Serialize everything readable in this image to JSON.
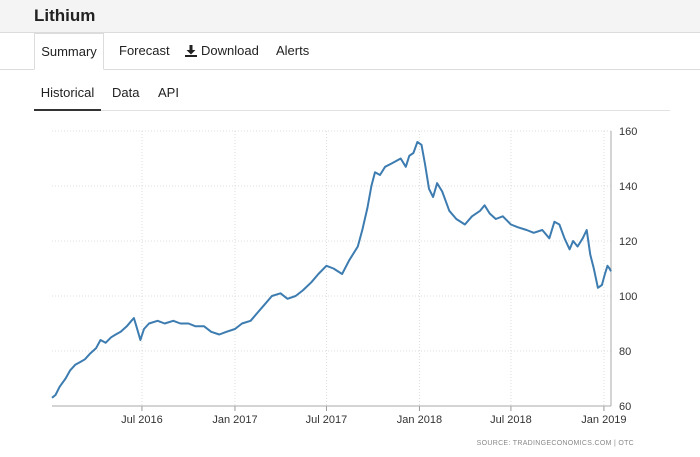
{
  "app": {
    "title": "Lithium"
  },
  "tabs": [
    {
      "label": "Summary",
      "active": true
    },
    {
      "label": "Forecast"
    },
    {
      "label": "Download",
      "icon": "download-icon"
    },
    {
      "label": "Alerts"
    }
  ],
  "subtabs": [
    {
      "label": "Historical",
      "active": true
    },
    {
      "label": "Data"
    },
    {
      "label": "API"
    }
  ],
  "colors": {
    "line": "#3d7cb0",
    "grid": "#dddddd",
    "active_underline": "#333333"
  },
  "chart_data": {
    "type": "line",
    "title": "",
    "xlabel": "",
    "ylabel": "",
    "ylim": [
      60,
      160
    ],
    "yticks": [
      60,
      80,
      100,
      120,
      140,
      160
    ],
    "xticks": [
      "Jul 2016",
      "Jan 2017",
      "Jul 2017",
      "Jan 2018",
      "Jul 2018",
      "Jan 2019"
    ],
    "xlim": [
      "2016-01-05",
      "2019-01-15"
    ],
    "grid": true,
    "y_axis_side": "right",
    "series": [
      {
        "name": "",
        "points": [
          [
            "2016-01-05",
            63
          ],
          [
            "2016-01-12",
            64
          ],
          [
            "2016-01-20",
            67
          ],
          [
            "2016-02-01",
            70
          ],
          [
            "2016-02-10",
            73
          ],
          [
            "2016-02-20",
            75
          ],
          [
            "2016-03-01",
            76
          ],
          [
            "2016-03-10",
            77
          ],
          [
            "2016-03-20",
            79
          ],
          [
            "2016-04-01",
            81
          ],
          [
            "2016-04-10",
            84
          ],
          [
            "2016-04-20",
            83
          ],
          [
            "2016-05-01",
            85
          ],
          [
            "2016-05-10",
            86
          ],
          [
            "2016-05-20",
            87
          ],
          [
            "2016-06-01",
            89
          ],
          [
            "2016-06-10",
            91
          ],
          [
            "2016-06-15",
            92
          ],
          [
            "2016-06-20",
            89
          ],
          [
            "2016-06-28",
            84
          ],
          [
            "2016-07-05",
            88
          ],
          [
            "2016-07-15",
            90
          ],
          [
            "2016-08-01",
            91
          ],
          [
            "2016-08-15",
            90
          ],
          [
            "2016-09-01",
            91
          ],
          [
            "2016-09-15",
            90
          ],
          [
            "2016-10-01",
            90
          ],
          [
            "2016-10-15",
            89
          ],
          [
            "2016-11-01",
            89
          ],
          [
            "2016-11-15",
            87
          ],
          [
            "2016-12-01",
            86
          ],
          [
            "2016-12-15",
            87
          ],
          [
            "2017-01-01",
            88
          ],
          [
            "2017-01-15",
            90
          ],
          [
            "2017-02-01",
            91
          ],
          [
            "2017-02-15",
            94
          ],
          [
            "2017-03-01",
            97
          ],
          [
            "2017-03-15",
            100
          ],
          [
            "2017-04-01",
            101
          ],
          [
            "2017-04-15",
            99
          ],
          [
            "2017-05-01",
            100
          ],
          [
            "2017-05-15",
            102
          ],
          [
            "2017-06-01",
            105
          ],
          [
            "2017-06-15",
            108
          ],
          [
            "2017-07-01",
            111
          ],
          [
            "2017-07-15",
            110
          ],
          [
            "2017-08-01",
            108
          ],
          [
            "2017-08-15",
            113
          ],
          [
            "2017-09-01",
            118
          ],
          [
            "2017-09-10",
            124
          ],
          [
            "2017-09-20",
            132
          ],
          [
            "2017-09-28",
            140
          ],
          [
            "2017-10-05",
            145
          ],
          [
            "2017-10-15",
            144
          ],
          [
            "2017-10-25",
            147
          ],
          [
            "2017-11-05",
            148
          ],
          [
            "2017-11-15",
            149
          ],
          [
            "2017-11-25",
            150
          ],
          [
            "2017-12-05",
            147
          ],
          [
            "2017-12-12",
            151
          ],
          [
            "2017-12-20",
            152
          ],
          [
            "2017-12-28",
            156
          ],
          [
            "2018-01-05",
            155
          ],
          [
            "2018-01-12",
            148
          ],
          [
            "2018-01-20",
            139
          ],
          [
            "2018-01-28",
            136
          ],
          [
            "2018-02-05",
            141
          ],
          [
            "2018-02-15",
            138
          ],
          [
            "2018-03-01",
            131
          ],
          [
            "2018-03-15",
            128
          ],
          [
            "2018-04-01",
            126
          ],
          [
            "2018-04-15",
            129
          ],
          [
            "2018-05-01",
            131
          ],
          [
            "2018-05-10",
            133
          ],
          [
            "2018-05-20",
            130
          ],
          [
            "2018-06-01",
            128
          ],
          [
            "2018-06-15",
            129
          ],
          [
            "2018-07-01",
            126
          ],
          [
            "2018-07-15",
            125
          ],
          [
            "2018-08-01",
            124
          ],
          [
            "2018-08-15",
            123
          ],
          [
            "2018-09-01",
            124
          ],
          [
            "2018-09-15",
            121
          ],
          [
            "2018-09-25",
            127
          ],
          [
            "2018-10-05",
            126
          ],
          [
            "2018-10-15",
            121
          ],
          [
            "2018-10-25",
            117
          ],
          [
            "2018-11-01",
            120
          ],
          [
            "2018-11-10",
            118
          ],
          [
            "2018-11-20",
            121
          ],
          [
            "2018-11-28",
            124
          ],
          [
            "2018-12-05",
            115
          ],
          [
            "2018-12-12",
            110
          ],
          [
            "2018-12-20",
            103
          ],
          [
            "2018-12-28",
            104
          ],
          [
            "2019-01-03",
            108
          ],
          [
            "2019-01-08",
            111
          ],
          [
            "2019-01-12",
            110
          ],
          [
            "2019-01-15",
            109
          ]
        ]
      }
    ]
  },
  "source": "SOURCE: TRADINGECONOMICS.COM | OTC"
}
